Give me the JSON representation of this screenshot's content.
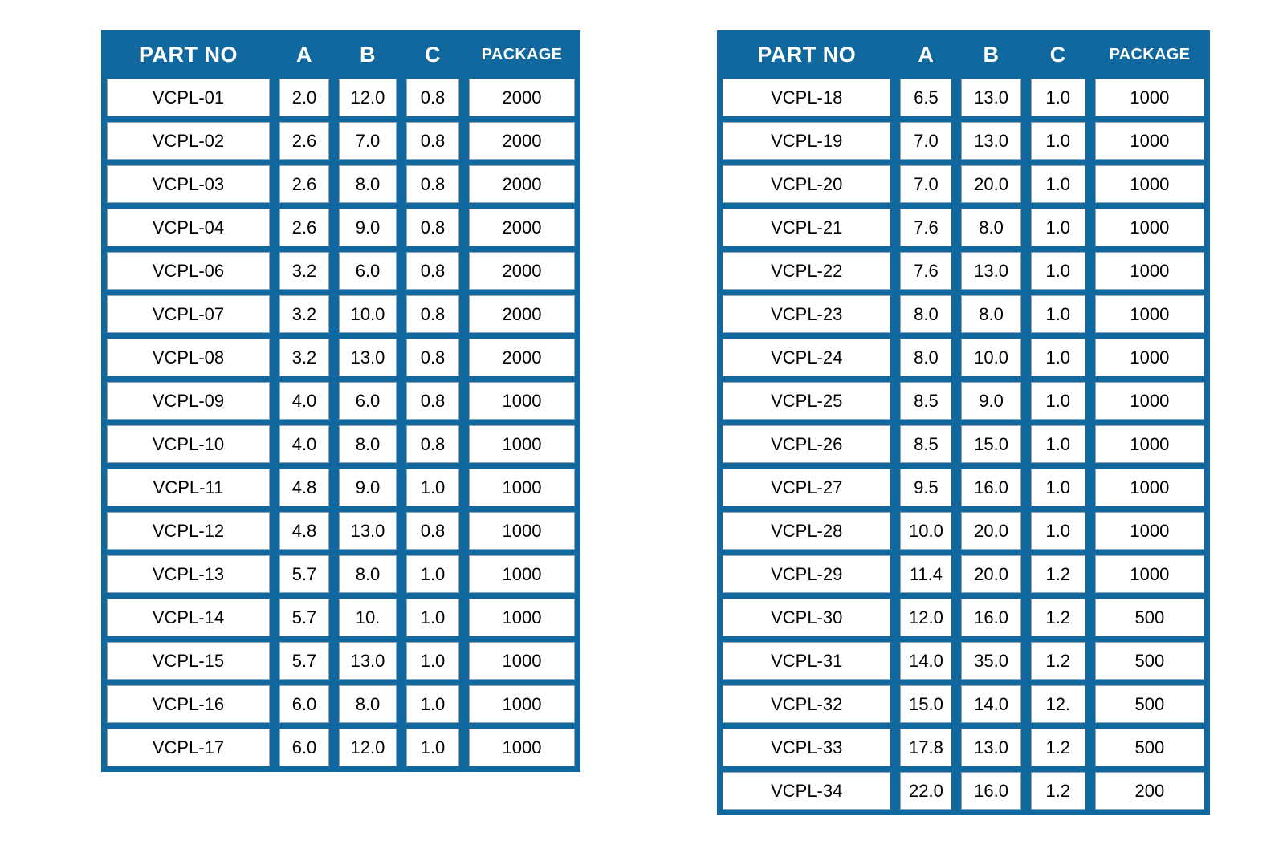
{
  "colors": {
    "table_blue": "#11689E",
    "cell_background": "#FFFFFF",
    "header_text": "#FFFFFF",
    "body_text": "#000000"
  },
  "tables": [
    {
      "id": "left",
      "headers": {
        "part_no": "PART NO",
        "a": "A",
        "b": "B",
        "c": "C",
        "package": "PACKAGE"
      },
      "rows": [
        {
          "part_no": "VCPL-01",
          "a": "2.0",
          "b": "12.0",
          "c": "0.8",
          "package": "2000"
        },
        {
          "part_no": "VCPL-02",
          "a": "2.6",
          "b": "7.0",
          "c": "0.8",
          "package": "2000"
        },
        {
          "part_no": "VCPL-03",
          "a": "2.6",
          "b": "8.0",
          "c": "0.8",
          "package": "2000"
        },
        {
          "part_no": "VCPL-04",
          "a": "2.6",
          "b": "9.0",
          "c": "0.8",
          "package": "2000"
        },
        {
          "part_no": "VCPL-06",
          "a": "3.2",
          "b": "6.0",
          "c": "0.8",
          "package": "2000"
        },
        {
          "part_no": "VCPL-07",
          "a": "3.2",
          "b": "10.0",
          "c": "0.8",
          "package": "2000"
        },
        {
          "part_no": "VCPL-08",
          "a": "3.2",
          "b": "13.0",
          "c": "0.8",
          "package": "2000"
        },
        {
          "part_no": "VCPL-09",
          "a": "4.0",
          "b": "6.0",
          "c": "0.8",
          "package": "1000"
        },
        {
          "part_no": "VCPL-10",
          "a": "4.0",
          "b": "8.0",
          "c": "0.8",
          "package": "1000"
        },
        {
          "part_no": "VCPL-11",
          "a": "4.8",
          "b": "9.0",
          "c": "1.0",
          "package": "1000"
        },
        {
          "part_no": "VCPL-12",
          "a": "4.8",
          "b": "13.0",
          "c": "0.8",
          "package": "1000"
        },
        {
          "part_no": "VCPL-13",
          "a": "5.7",
          "b": "8.0",
          "c": "1.0",
          "package": "1000"
        },
        {
          "part_no": "VCPL-14",
          "a": "5.7",
          "b": "10.",
          "c": "1.0",
          "package": "1000"
        },
        {
          "part_no": "VCPL-15",
          "a": "5.7",
          "b": "13.0",
          "c": "1.0",
          "package": "1000"
        },
        {
          "part_no": "VCPL-16",
          "a": "6.0",
          "b": "8.0",
          "c": "1.0",
          "package": "1000"
        },
        {
          "part_no": "VCPL-17",
          "a": "6.0",
          "b": "12.0",
          "c": "1.0",
          "package": "1000"
        }
      ]
    },
    {
      "id": "right",
      "headers": {
        "part_no": "PART NO",
        "a": "A",
        "b": "B",
        "c": "C",
        "package": "PACKAGE"
      },
      "rows": [
        {
          "part_no": "VCPL-18",
          "a": "6.5",
          "b": "13.0",
          "c": "1.0",
          "package": "1000"
        },
        {
          "part_no": "VCPL-19",
          "a": "7.0",
          "b": "13.0",
          "c": "1.0",
          "package": "1000"
        },
        {
          "part_no": "VCPL-20",
          "a": "7.0",
          "b": "20.0",
          "c": "1.0",
          "package": "1000"
        },
        {
          "part_no": "VCPL-21",
          "a": "7.6",
          "b": "8.0",
          "c": "1.0",
          "package": "1000"
        },
        {
          "part_no": "VCPL-22",
          "a": "7.6",
          "b": "13.0",
          "c": "1.0",
          "package": "1000"
        },
        {
          "part_no": "VCPL-23",
          "a": "8.0",
          "b": "8.0",
          "c": "1.0",
          "package": "1000"
        },
        {
          "part_no": "VCPL-24",
          "a": "8.0",
          "b": "10.0",
          "c": "1.0",
          "package": "1000"
        },
        {
          "part_no": "VCPL-25",
          "a": "8.5",
          "b": "9.0",
          "c": "1.0",
          "package": "1000"
        },
        {
          "part_no": "VCPL-26",
          "a": "8.5",
          "b": "15.0",
          "c": "1.0",
          "package": "1000"
        },
        {
          "part_no": "VCPL-27",
          "a": "9.5",
          "b": "16.0",
          "c": "1.0",
          "package": "1000"
        },
        {
          "part_no": "VCPL-28",
          "a": "10.0",
          "b": "20.0",
          "c": "1.0",
          "package": "1000"
        },
        {
          "part_no": "VCPL-29",
          "a": "11.4",
          "b": "20.0",
          "c": "1.2",
          "package": "1000"
        },
        {
          "part_no": "VCPL-30",
          "a": "12.0",
          "b": "16.0",
          "c": "1.2",
          "package": "500"
        },
        {
          "part_no": "VCPL-31",
          "a": "14.0",
          "b": "35.0",
          "c": "1.2",
          "package": "500"
        },
        {
          "part_no": "VCPL-32",
          "a": "15.0",
          "b": "14.0",
          "c": "12.",
          "package": "500"
        },
        {
          "part_no": "VCPL-33",
          "a": "17.8",
          "b": "13.0",
          "c": "1.2",
          "package": "500"
        },
        {
          "part_no": "VCPL-34",
          "a": "22.0",
          "b": "16.0",
          "c": "1.2",
          "package": "200"
        }
      ]
    }
  ]
}
